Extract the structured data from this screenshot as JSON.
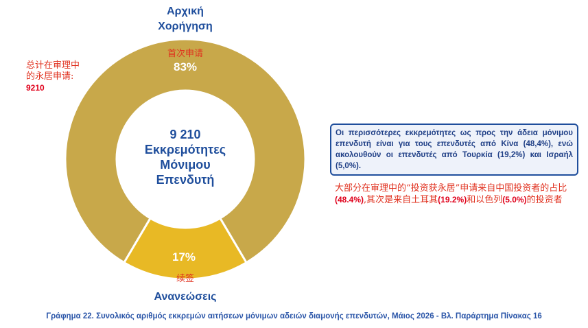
{
  "chart_data": {
    "type": "pie",
    "donut": true,
    "slices": [
      {
        "label": "Αρχική Χορήγηση",
        "label_line1": "Αρχική",
        "label_line2": "Χορήγηση",
        "zh_label": "首次申请",
        "value": 83,
        "display": "83%",
        "color": "#c8a84a"
      },
      {
        "label": "Ανανεώσεις",
        "zh_label": "续签",
        "value": 17,
        "display": "17%",
        "color": "#e8b925"
      }
    ],
    "center": {
      "line1": "9 210",
      "line2": "Εκκρεμότητες",
      "line3": "Μόνιμου",
      "line4": "Επενδυτή"
    }
  },
  "left_note": {
    "line1": "总计在审理中",
    "line2": "的永居申请:",
    "value": "9210"
  },
  "info_box": "Οι περισσότερες εκκρεμότητες ως προς την άδεια μόνιμου επενδυτή είναι για τους επενδυτές από Κίνα (48,4%), ενώ ακολουθούν οι επενδυτές από Τουρκία (19,2%) και Ισραήλ (5,0%).",
  "right_note": {
    "part1": "大部分在审理中的“投资获永居”申请来自中国投资者的占比",
    "hl1": "(48.4%)",
    "part2": ",其次是来自土耳其",
    "hl2": "(19.2%)",
    "part3": "和以色列",
    "hl3": "(5.0%)",
    "part4": "的投资者"
  },
  "caption": "Γράφημα 22. Συνολικός αριθμός εκκρεμών αιτήσεων μόνιμων αδειών διαμονής επενδυτών, Μάιος 2026 - Βλ. Παράρτημα  Πίνακας 16"
}
